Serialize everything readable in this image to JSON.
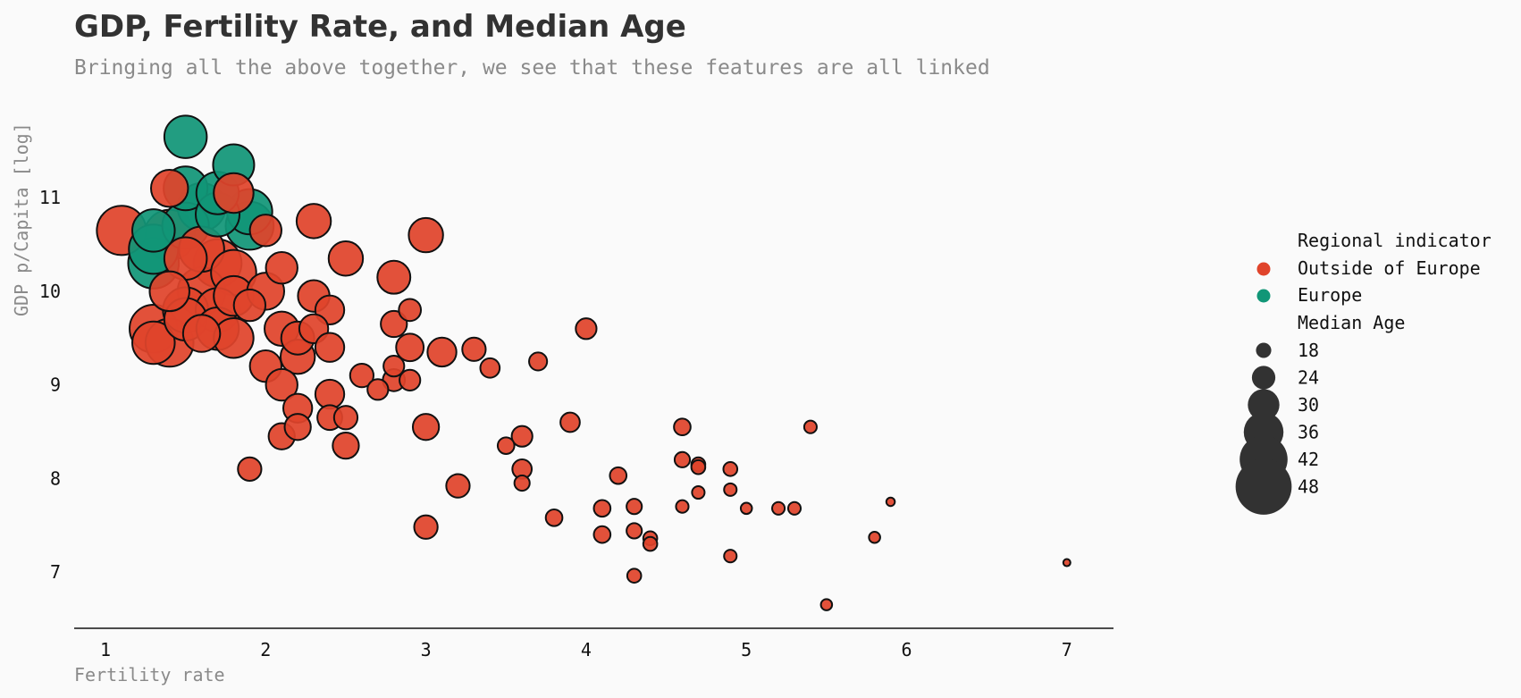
{
  "chart_data": {
    "type": "scatter",
    "title": "GDP, Fertility Rate, and Median Age",
    "subtitle": "Bringing all the above together, we see that these features are all linked",
    "xlabel": "Fertility rate",
    "ylabel": "GDP p/Capita [log]",
    "xlim": [
      0.8,
      7.3
    ],
    "ylim": [
      6.4,
      12.0
    ],
    "x_ticks": [
      "1",
      "2",
      "3",
      "4",
      "5",
      "6",
      "7"
    ],
    "y_ticks": [
      "7",
      "8",
      "9",
      "10",
      "11"
    ],
    "grid": false,
    "legend": {
      "position": "right",
      "color_title": "Regional indicator",
      "size_title": "Median Age",
      "color_entries": [
        {
          "label": "Outside of Europe",
          "color": "#e0442b"
        },
        {
          "label": "Europe",
          "color": "#119677"
        }
      ],
      "size_entries": [
        "18",
        "24",
        "30",
        "36",
        "42",
        "48"
      ]
    },
    "series": [
      {
        "name": "Outside of Europe",
        "color": "#e0442b",
        "points": [
          {
            "x": 1.1,
            "y": 10.65,
            "age": 43
          },
          {
            "x": 1.4,
            "y": 11.1,
            "age": 34
          },
          {
            "x": 1.8,
            "y": 11.05,
            "age": 36
          },
          {
            "x": 2.3,
            "y": 10.75,
            "age": 32
          },
          {
            "x": 3.0,
            "y": 10.6,
            "age": 32
          },
          {
            "x": 2.5,
            "y": 10.35,
            "age": 32
          },
          {
            "x": 2.8,
            "y": 10.15,
            "age": 31
          },
          {
            "x": 2.1,
            "y": 10.25,
            "age": 30
          },
          {
            "x": 2.0,
            "y": 10.65,
            "age": 30
          },
          {
            "x": 1.4,
            "y": 10.6,
            "age": 44
          },
          {
            "x": 1.5,
            "y": 10.35,
            "age": 38
          },
          {
            "x": 1.6,
            "y": 10.45,
            "age": 40
          },
          {
            "x": 1.7,
            "y": 10.3,
            "age": 42
          },
          {
            "x": 1.8,
            "y": 10.2,
            "age": 40
          },
          {
            "x": 1.4,
            "y": 10.0,
            "age": 36
          },
          {
            "x": 1.5,
            "y": 9.8,
            "age": 40
          },
          {
            "x": 1.6,
            "y": 10.0,
            "age": 42
          },
          {
            "x": 1.7,
            "y": 9.8,
            "age": 39
          },
          {
            "x": 1.8,
            "y": 9.95,
            "age": 36
          },
          {
            "x": 1.9,
            "y": 9.85,
            "age": 30
          },
          {
            "x": 2.0,
            "y": 10.0,
            "age": 34
          },
          {
            "x": 1.3,
            "y": 9.6,
            "age": 42
          },
          {
            "x": 1.3,
            "y": 9.45,
            "age": 38
          },
          {
            "x": 1.4,
            "y": 9.45,
            "age": 42
          },
          {
            "x": 1.5,
            "y": 9.7,
            "age": 38
          },
          {
            "x": 1.6,
            "y": 9.55,
            "age": 34
          },
          {
            "x": 1.7,
            "y": 9.6,
            "age": 38
          },
          {
            "x": 1.8,
            "y": 9.5,
            "age": 36
          },
          {
            "x": 2.1,
            "y": 9.6,
            "age": 32
          },
          {
            "x": 2.2,
            "y": 9.5,
            "age": 31
          },
          {
            "x": 2.3,
            "y": 9.95,
            "age": 30
          },
          {
            "x": 2.4,
            "y": 9.8,
            "age": 28
          },
          {
            "x": 2.3,
            "y": 9.6,
            "age": 28
          },
          {
            "x": 2.4,
            "y": 9.4,
            "age": 28
          },
          {
            "x": 2.0,
            "y": 9.2,
            "age": 30
          },
          {
            "x": 2.1,
            "y": 9.0,
            "age": 30
          },
          {
            "x": 2.2,
            "y": 9.3,
            "age": 32
          },
          {
            "x": 2.2,
            "y": 8.75,
            "age": 28
          },
          {
            "x": 2.4,
            "y": 8.9,
            "age": 28
          },
          {
            "x": 2.4,
            "y": 8.65,
            "age": 25
          },
          {
            "x": 2.1,
            "y": 8.45,
            "age": 26
          },
          {
            "x": 2.2,
            "y": 8.55,
            "age": 26
          },
          {
            "x": 2.5,
            "y": 8.65,
            "age": 24
          },
          {
            "x": 2.5,
            "y": 8.35,
            "age": 26
          },
          {
            "x": 1.9,
            "y": 8.1,
            "age": 24
          },
          {
            "x": 2.6,
            "y": 9.1,
            "age": 24
          },
          {
            "x": 2.7,
            "y": 8.95,
            "age": 22
          },
          {
            "x": 2.8,
            "y": 9.05,
            "age": 23
          },
          {
            "x": 2.8,
            "y": 9.2,
            "age": 22
          },
          {
            "x": 2.9,
            "y": 9.05,
            "age": 22
          },
          {
            "x": 2.9,
            "y": 9.4,
            "age": 27
          },
          {
            "x": 2.8,
            "y": 9.65,
            "age": 26
          },
          {
            "x": 2.9,
            "y": 9.8,
            "age": 23
          },
          {
            "x": 3.1,
            "y": 9.35,
            "age": 28
          },
          {
            "x": 3.3,
            "y": 9.38,
            "age": 24
          },
          {
            "x": 3.4,
            "y": 9.18,
            "age": 21
          },
          {
            "x": 3.7,
            "y": 9.25,
            "age": 20
          },
          {
            "x": 4.0,
            "y": 9.6,
            "age": 22
          },
          {
            "x": 3.0,
            "y": 8.55,
            "age": 26
          },
          {
            "x": 3.9,
            "y": 8.6,
            "age": 21
          },
          {
            "x": 3.6,
            "y": 8.45,
            "age": 22
          },
          {
            "x": 3.5,
            "y": 8.35,
            "age": 19
          },
          {
            "x": 3.6,
            "y": 8.1,
            "age": 21
          },
          {
            "x": 3.6,
            "y": 7.95,
            "age": 18
          },
          {
            "x": 3.2,
            "y": 7.92,
            "age": 24
          },
          {
            "x": 3.0,
            "y": 7.48,
            "age": 24
          },
          {
            "x": 3.8,
            "y": 7.58,
            "age": 19
          },
          {
            "x": 4.1,
            "y": 7.68,
            "age": 19
          },
          {
            "x": 4.3,
            "y": 7.7,
            "age": 18
          },
          {
            "x": 4.2,
            "y": 8.03,
            "age": 19
          },
          {
            "x": 4.1,
            "y": 7.4,
            "age": 19
          },
          {
            "x": 4.3,
            "y": 7.44,
            "age": 18
          },
          {
            "x": 4.4,
            "y": 7.36,
            "age": 17
          },
          {
            "x": 4.4,
            "y": 7.3,
            "age": 17
          },
          {
            "x": 4.3,
            "y": 6.96,
            "age": 17
          },
          {
            "x": 4.6,
            "y": 8.55,
            "age": 19
          },
          {
            "x": 4.6,
            "y": 8.2,
            "age": 18
          },
          {
            "x": 4.7,
            "y": 8.15,
            "age": 17
          },
          {
            "x": 4.7,
            "y": 8.12,
            "age": 17
          },
          {
            "x": 4.9,
            "y": 8.1,
            "age": 17
          },
          {
            "x": 4.9,
            "y": 7.88,
            "age": 16
          },
          {
            "x": 4.7,
            "y": 7.85,
            "age": 16
          },
          {
            "x": 4.6,
            "y": 7.7,
            "age": 16
          },
          {
            "x": 5.0,
            "y": 7.68,
            "age": 15
          },
          {
            "x": 5.2,
            "y": 7.68,
            "age": 16
          },
          {
            "x": 5.3,
            "y": 7.68,
            "age": 16
          },
          {
            "x": 4.9,
            "y": 7.17,
            "age": 16
          },
          {
            "x": 5.4,
            "y": 8.55,
            "age": 16
          },
          {
            "x": 5.5,
            "y": 6.65,
            "age": 15
          },
          {
            "x": 5.8,
            "y": 7.37,
            "age": 15
          },
          {
            "x": 5.9,
            "y": 7.75,
            "age": 13
          },
          {
            "x": 7.0,
            "y": 7.1,
            "age": 12
          }
        ]
      },
      {
        "name": "Europe",
        "color": "#119677",
        "points": [
          {
            "x": 1.5,
            "y": 11.65,
            "age": 38
          },
          {
            "x": 1.8,
            "y": 11.35,
            "age": 37
          },
          {
            "x": 1.5,
            "y": 11.1,
            "age": 39
          },
          {
            "x": 1.7,
            "y": 11.05,
            "age": 38
          },
          {
            "x": 1.6,
            "y": 10.9,
            "age": 42
          },
          {
            "x": 1.9,
            "y": 10.85,
            "age": 40
          },
          {
            "x": 1.7,
            "y": 10.82,
            "age": 39
          },
          {
            "x": 1.3,
            "y": 10.65,
            "age": 38
          },
          {
            "x": 1.5,
            "y": 10.7,
            "age": 41
          },
          {
            "x": 1.9,
            "y": 10.7,
            "age": 42
          },
          {
            "x": 1.3,
            "y": 10.45,
            "age": 43
          },
          {
            "x": 1.3,
            "y": 10.3,
            "age": 44
          }
        ]
      }
    ]
  }
}
